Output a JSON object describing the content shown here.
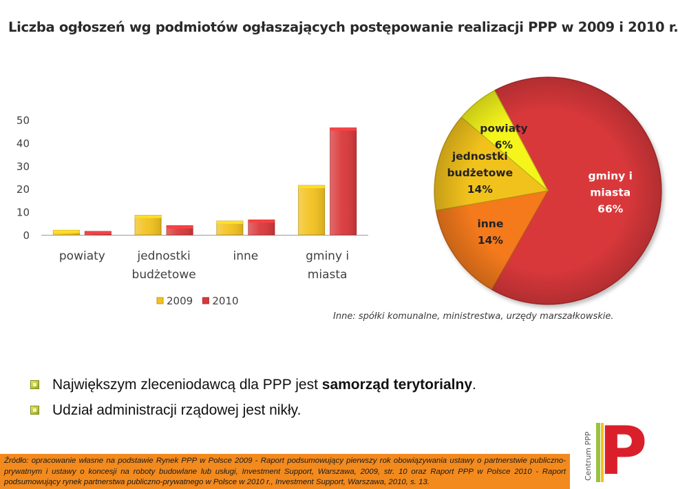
{
  "header": {
    "title": "Liczba ogłoszeń wg podmiotów ogłaszających postępowanie realizacji PPP w 2009 i 2010 r."
  },
  "chart_data": [
    {
      "type": "bar",
      "categories": [
        [
          "powiaty"
        ],
        [
          "jednostki",
          "budżetowe"
        ],
        [
          "inne"
        ],
        [
          "gminy i",
          "miasta"
        ]
      ],
      "series": [
        {
          "name": "2009",
          "values": [
            2,
            8.5,
            6,
            21.5
          ],
          "color": "#f2c21f"
        },
        {
          "name": "2010",
          "values": [
            1.5,
            4,
            6.5,
            46.5
          ],
          "color": "#d9383a"
        }
      ],
      "yticks": [
        "0",
        "10",
        "20",
        "30",
        "40",
        "50"
      ],
      "ylim": [
        0,
        50
      ],
      "legend": "bottom"
    },
    {
      "type": "pie",
      "slices": [
        {
          "lines": [
            "gminy i",
            "miasta",
            "66%"
          ],
          "value": 66,
          "color": "#d9383a",
          "label_color": "#ffffff"
        },
        {
          "lines": [
            "inne",
            "14%"
          ],
          "value": 14,
          "color": "#f47a1e",
          "label_color": "#222222"
        },
        {
          "lines": [
            "jednostki",
            "budżetowe",
            "14%"
          ],
          "value": 14,
          "color": "#f2c21f",
          "label_color": "#222222"
        },
        {
          "lines": [
            "powiaty",
            "6%"
          ],
          "value": 6,
          "color": "#f5f51e",
          "label_color": "#222222"
        }
      ]
    }
  ],
  "note": "Inne: spółki komunalne, ministrestwa, urzędy marszałkowskie.",
  "bullets": [
    {
      "prefix": "Największym zleceniodawcą dla PPP jest ",
      "bold": "samorząd terytorialny",
      "suffix": "."
    },
    {
      "prefix": "Udział administracji rządowej jest nikły.",
      "bold": "",
      "suffix": ""
    }
  ],
  "source": "Źródło: opracowanie własne na podstawie Rynek PPP w Polsce 2009 - Raport podsumowujący pierwszy rok obowiązywania ustawy o partnerstwie publiczno-prywatnym i ustawy o koncesji na roboty budowlane lub usługi, Investment Support, Warszawa, 2009, str. 10 oraz Raport PPP w Polsce 2010 - Raport podsumowujący rynek partnerstwa publiczno-prywatnego w Polsce w 2010 r., Investment Support, Warszawa, 2010, s. 13.",
  "logo": {
    "text": "Centrum PPP",
    "letter": "P",
    "colors": {
      "red": "#d9202a",
      "green": "#9ac23c",
      "yellow": "#f4c21a",
      "orange": "#f2891c"
    }
  }
}
